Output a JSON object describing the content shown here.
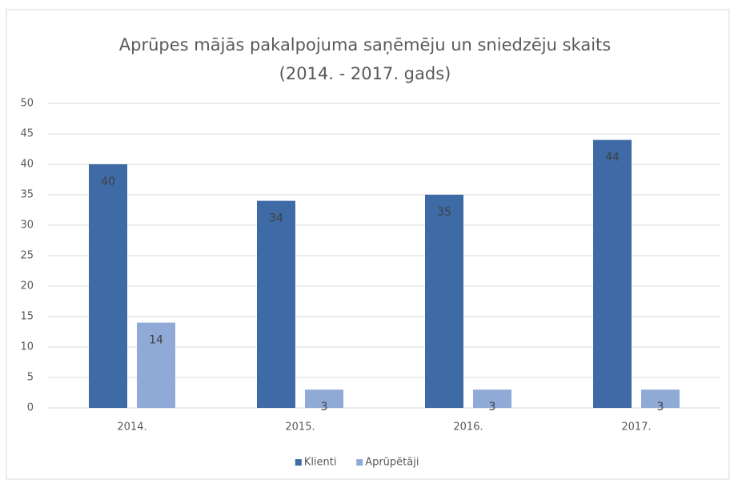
{
  "chart_data": {
    "type": "bar",
    "title": [
      "Aprūpes mājās pakalpojuma saņēmēju un sniedzēju skaits",
      "(2014. - 2017. gads)"
    ],
    "categories": [
      "2014.",
      "2015.",
      "2016.",
      "2017."
    ],
    "series": [
      {
        "name": "Klienti",
        "color": "#3e6aa6",
        "values": [
          40,
          34,
          35,
          44
        ]
      },
      {
        "name": "Aprūpētāji",
        "color": "#8faad6",
        "values": [
          14,
          3,
          3,
          3
        ]
      }
    ],
    "ylim": [
      0,
      50
    ],
    "yticks": [
      0,
      5,
      10,
      15,
      20,
      25,
      30,
      35,
      40,
      45,
      50
    ],
    "grid": true,
    "legend": "bottom"
  }
}
